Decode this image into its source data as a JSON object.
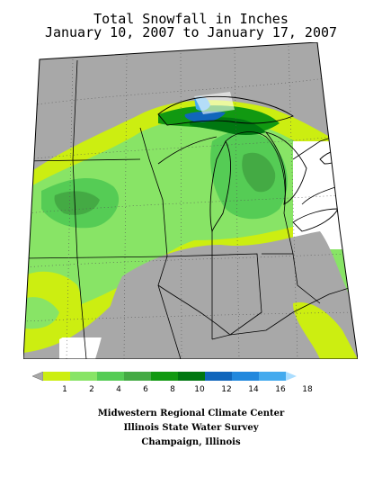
{
  "title": {
    "line1": "Total Snowfall in Inches",
    "line2": "January 10, 2007 to January 17, 2007"
  },
  "legend": {
    "labels": [
      "1",
      "2",
      "4",
      "6",
      "8",
      "10",
      "12",
      "14",
      "16",
      "18"
    ],
    "colors": [
      "#a8a8a8",
      "#ccee11",
      "#88e466",
      "#55cc55",
      "#44aa44",
      "#119911",
      "#007711",
      "#1166bb",
      "#2288dd",
      "#44aaee",
      "#aaddff"
    ]
  },
  "map": {
    "colors": {
      "no_data": "#a8a8a8",
      "white": "#ffffff",
      "trace": "#ccee11",
      "light_green": "#88e466",
      "mid_green": "#55cc55",
      "dark_green": "#44aa44",
      "forest_green": "#119911",
      "deep_green": "#007711",
      "blue": "#1166bb",
      "light_blue": "#44aaee"
    }
  },
  "credits": {
    "line1": "Midwestern Regional Climate Center",
    "line2": "Illinois State Water Survey",
    "line3": "Champaign, Illinois"
  }
}
